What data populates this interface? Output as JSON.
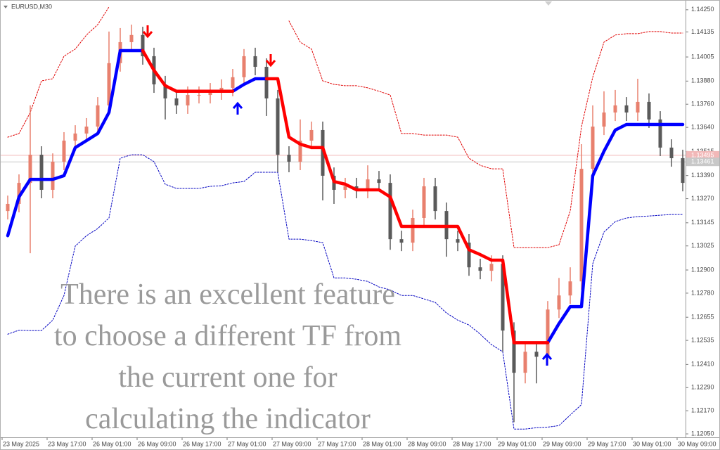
{
  "chart_data": {
    "type": "candlestick",
    "title": "EURUSD,M30",
    "categories": [
      "23 May 2025",
      null,
      null,
      null,
      "23 May 17:00",
      null,
      null,
      null,
      "26 May 01:00",
      null,
      null,
      null,
      "26 May 09:00",
      null,
      null,
      null,
      "26 May 17:00",
      null,
      null,
      null,
      "27 May 01:00",
      null,
      null,
      null,
      "27 May 09:00",
      null,
      null,
      null,
      "27 May 17:00",
      null,
      null,
      null,
      "28 May 01:00",
      null,
      null,
      null,
      "28 May 09:00",
      null,
      null,
      null,
      "28 May 17:00",
      null,
      null,
      null,
      "29 May 01:00",
      null,
      null,
      null,
      "29 May 09:00",
      null,
      null,
      null,
      "29 May 17:00",
      null,
      null,
      null,
      "30 May 01:00",
      null,
      null,
      null,
      "30 May 09:00"
    ],
    "candles": {
      "open": [
        1.13206,
        1.13243,
        1.13352,
        1.13498,
        1.13316,
        1.13462,
        1.13571,
        1.13608,
        1.13644,
        1.13754,
        1.13973,
        1.14082,
        1.14119,
        1.14009,
        1.13863,
        1.1379,
        1.13754,
        1.13808,
        1.13808,
        1.13827,
        1.13845,
        1.139,
        1.14009,
        1.13954,
        1.1379,
        1.13498,
        1.13462,
        1.13571,
        1.13626,
        1.13389,
        1.13316,
        1.13334,
        1.13316,
        1.1337,
        1.13352,
        1.1306,
        1.13042,
        1.1317,
        1.13334,
        1.13206,
        1.1306,
        1.13042,
        1.12914,
        1.12896,
        1.12932,
        1.12586,
        1.12367,
        1.12476,
        1.1245,
        1.12695,
        1.12768,
        1.12841,
        1.13425,
        1.13644,
        1.13717,
        1.13754,
        1.13717,
        1.13772,
        1.13681,
        1.13535,
        1.1348
      ],
      "high": [
        1.13286,
        1.13396,
        1.13754,
        1.13542,
        1.13505,
        1.13615,
        1.13651,
        1.13688,
        1.13797,
        1.14137,
        1.14155,
        1.14173,
        1.14162,
        1.14053,
        1.13907,
        1.13834,
        1.13852,
        1.13852,
        1.1387,
        1.13889,
        1.13943,
        1.14046,
        1.14053,
        1.13998,
        1.13834,
        1.13542,
        1.13681,
        1.1367,
        1.1367,
        1.13432,
        1.13378,
        1.13378,
        1.13443,
        1.13414,
        1.13396,
        1.13104,
        1.13213,
        1.13378,
        1.13378,
        1.1325,
        1.13104,
        1.13086,
        1.12958,
        1.12976,
        1.12976,
        1.12629,
        1.1252,
        1.1252,
        1.12739,
        1.12859,
        1.12914,
        1.13553,
        1.13754,
        1.13827,
        1.13834,
        1.13797,
        1.13892,
        1.13816,
        1.13724,
        1.13578,
        1.13524
      ],
      "low": [
        1.13162,
        1.13199,
        1.12987,
        1.13272,
        1.13272,
        1.13418,
        1.13527,
        1.13564,
        1.136,
        1.1371,
        1.13929,
        1.14038,
        1.13965,
        1.13819,
        1.13681,
        1.1371,
        1.1371,
        1.13764,
        1.13764,
        1.13783,
        1.13801,
        1.13856,
        1.1391,
        1.13699,
        1.13407,
        1.13407,
        1.13418,
        1.13527,
        1.13261,
        1.13243,
        1.13272,
        1.13272,
        1.13272,
        1.13308,
        1.13005,
        1.12998,
        1.12998,
        1.13126,
        1.13162,
        1.12969,
        1.12998,
        1.1287,
        1.12852,
        1.12841,
        1.12476,
        1.12111,
        1.12312,
        1.12312,
        1.12406,
        1.12651,
        1.12724,
        1.12797,
        1.13381,
        1.136,
        1.13673,
        1.13673,
        1.13673,
        1.13637,
        1.13491,
        1.13436,
        1.13308
      ],
      "close": [
        1.13243,
        1.13352,
        1.13498,
        1.13316,
        1.13462,
        1.13571,
        1.13608,
        1.13644,
        1.13754,
        1.13973,
        1.14082,
        1.14119,
        1.14009,
        1.13863,
        1.1379,
        1.13754,
        1.13808,
        1.13808,
        1.13827,
        1.13845,
        1.139,
        1.14009,
        1.13954,
        1.1379,
        1.13498,
        1.13462,
        1.13571,
        1.13626,
        1.13389,
        1.13316,
        1.13334,
        1.13316,
        1.1337,
        1.13352,
        1.1306,
        1.13042,
        1.1317,
        1.13334,
        1.13206,
        1.1306,
        1.13042,
        1.12914,
        1.12896,
        1.12932,
        1.12586,
        1.12367,
        1.12476,
        1.1245,
        1.12695,
        1.12768,
        1.12841,
        1.13425,
        1.13644,
        1.13717,
        1.13754,
        1.13717,
        1.13772,
        1.13681,
        1.13535,
        1.1348,
        1.13352
      ],
      "up_color": "#e8806e",
      "down_color": "#5a5a5a"
    },
    "series": [
      {
        "color": "#0000ff",
        "values": [
          1.13078,
          1.13279,
          1.1337,
          1.1337,
          1.1337,
          1.13389,
          1.13535,
          1.13571,
          1.13608,
          1.13717,
          1.14038,
          1.14038,
          1.14038,
          null,
          null,
          null,
          null,
          null,
          null,
          null,
          1.13827,
          1.13863,
          1.13892,
          1.13892,
          null,
          null,
          null,
          null,
          null,
          null,
          null,
          null,
          null,
          null,
          null,
          null,
          null,
          null,
          null,
          null,
          null,
          null,
          null,
          null,
          null,
          null,
          null,
          null,
          1.12523,
          1.12622,
          1.1271,
          1.1271,
          1.13389,
          1.13516,
          1.13626,
          1.13655,
          1.13655,
          1.13655,
          1.13655,
          1.13655,
          1.13655
        ]
      },
      {
        "color": "#ff0000",
        "values": [
          null,
          null,
          null,
          null,
          null,
          null,
          null,
          null,
          null,
          null,
          null,
          null,
          1.14038,
          1.13936,
          1.13856,
          1.13827,
          1.13827,
          1.13827,
          1.13827,
          1.13827,
          1.13827,
          null,
          null,
          1.13892,
          1.13892,
          1.13589,
          1.13553,
          1.13535,
          1.13535,
          1.13359,
          1.13345,
          1.13316,
          1.13316,
          1.13316,
          1.13279,
          1.13126,
          1.13126,
          1.13126,
          1.13126,
          1.13126,
          1.13126,
          1.13005,
          1.1298,
          1.12951,
          1.12951,
          1.12523,
          1.12523,
          1.12523,
          1.12523,
          null,
          null,
          null,
          null,
          null,
          null,
          null,
          null,
          null,
          null,
          null,
          null
        ]
      }
    ],
    "bands": [
      {
        "color": "#e00000",
        "values": [
          1.13589,
          1.13608,
          1.13717,
          1.13881,
          1.13892,
          1.14009,
          1.14046,
          1.14119,
          1.14173,
          1.14265,
          null,
          null,
          null,
          null,
          null,
          null,
          null,
          null,
          null,
          null,
          null,
          null,
          null,
          null,
          null,
          1.14192,
          1.14082,
          1.14046,
          1.13881,
          1.13863,
          1.13856,
          1.13856,
          1.13845,
          1.13827,
          1.13808,
          1.13608,
          1.13608,
          1.136,
          1.136,
          1.136,
          1.13589,
          1.1348,
          1.13443,
          1.13425,
          1.13425,
          1.13016,
          1.13016,
          1.13016,
          1.13016,
          1.13031,
          1.13206,
          1.13644,
          1.139,
          1.14082,
          1.14119,
          1.14126,
          1.14126,
          1.14137,
          1.14137,
          1.14129,
          1.14129
        ]
      },
      {
        "color": "#0000c0",
        "values": [
          1.12567,
          1.12588,
          1.12586,
          1.12586,
          1.1264,
          1.12768,
          1.13024,
          1.13078,
          1.13115,
          1.1317,
          1.1348,
          1.13498,
          1.13498,
          1.13462,
          1.13345,
          1.13323,
          1.13323,
          1.13323,
          1.13334,
          1.13337,
          1.13352,
          1.13359,
          1.13407,
          1.13407,
          1.13407,
          1.1306,
          1.1306,
          1.13053,
          1.13042,
          1.12859,
          1.12859,
          1.12852,
          1.12841,
          1.12812,
          1.12797,
          1.12768,
          1.12768,
          1.1275,
          1.12732,
          1.12677,
          1.1264,
          1.12615,
          1.12567,
          1.12513,
          1.12476,
          1.12075,
          1.12075,
          1.12082,
          1.12085,
          1.12093,
          1.12148,
          1.12202,
          1.12932,
          1.13097,
          1.13151,
          1.1317,
          1.13177,
          1.1318,
          1.13184,
          1.13188,
          1.13188
        ]
      }
    ],
    "price_lines": [
      {
        "value": 1.13495,
        "color": "#f2b8b8",
        "label_color": "#ffffff"
      },
      {
        "value": 1.13461,
        "color": "#c8c8c8",
        "label_color": "#ffffff"
      }
    ],
    "annotation": [
      "There is an excellent feature",
      "to choose a different TF from",
      "the current one for",
      "calculating the indicator"
    ],
    "ylim": [
      1.12032,
      1.14286
    ],
    "yticks": [
      {
        "value": 1.1425,
        "label": "1.14250"
      },
      1.14135,
      1.14005,
      {
        "value": 1.1388,
        "label": "1.13880"
      },
      {
        "value": 1.1376,
        "label": "1.13760"
      },
      {
        "value": 1.1364,
        "label": "1.13640"
      },
      1.13515,
      {
        "value": 1.1339,
        "label": "1.13390"
      },
      {
        "value": 1.1327,
        "label": "1.13270"
      },
      1.13145,
      1.13025,
      {
        "value": 1.129,
        "label": "1.12900"
      },
      {
        "value": 1.1278,
        "label": "1.12780"
      },
      1.12655,
      1.12535,
      {
        "value": 1.1241,
        "label": "1.12410"
      },
      {
        "value": 1.1229,
        "label": "1.12290"
      },
      {
        "value": 1.1217,
        "label": "1.12170"
      },
      {
        "value": 1.1205,
        "label": "1.12050"
      }
    ],
    "grid": false
  }
}
